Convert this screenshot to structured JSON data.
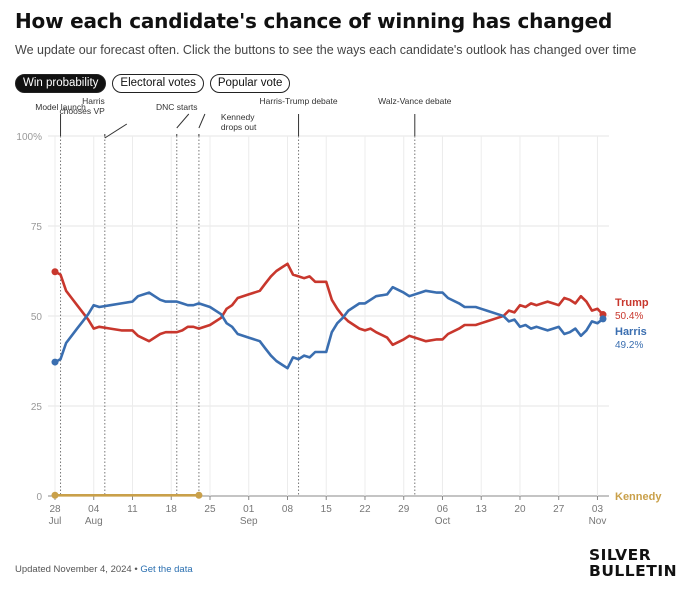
{
  "header": {
    "title": "How each candidate's chance of winning has changed",
    "subtitle": "We update our forecast often. Click the buttons to see the ways each candidate's outlook has changed over time"
  },
  "tabs": [
    {
      "label": "Win probability",
      "active": true
    },
    {
      "label": "Electoral votes",
      "active": false
    },
    {
      "label": "Popular vote",
      "active": false
    }
  ],
  "footer": {
    "updated": "Updated November 4, 2024",
    "separator": "•",
    "link": "Get the data"
  },
  "logo": {
    "line1": "SILVER",
    "line2": "BULLETIN"
  },
  "chart_data": {
    "type": "line",
    "title": "How each candidate's chance of winning has changed",
    "xlabel": "",
    "ylabel": "",
    "ylim": [
      0,
      100
    ],
    "yticks": [
      0,
      25,
      50,
      75,
      100
    ],
    "ytick_labels": [
      "0",
      "25",
      "50",
      "75",
      "100%"
    ],
    "xlim": [
      "2024-07-28",
      "2024-11-04"
    ],
    "xticks": [
      {
        "date": "2024-07-28",
        "day": "28",
        "month": "Jul"
      },
      {
        "date": "2024-08-04",
        "day": "04",
        "month": "Aug"
      },
      {
        "date": "2024-08-11",
        "day": "11",
        "month": ""
      },
      {
        "date": "2024-08-18",
        "day": "18",
        "month": ""
      },
      {
        "date": "2024-08-25",
        "day": "25",
        "month": ""
      },
      {
        "date": "2024-09-01",
        "day": "01",
        "month": "Sep"
      },
      {
        "date": "2024-09-08",
        "day": "08",
        "month": ""
      },
      {
        "date": "2024-09-15",
        "day": "15",
        "month": ""
      },
      {
        "date": "2024-09-22",
        "day": "22",
        "month": ""
      },
      {
        "date": "2024-09-29",
        "day": "29",
        "month": ""
      },
      {
        "date": "2024-10-06",
        "day": "06",
        "month": "Oct"
      },
      {
        "date": "2024-10-13",
        "day": "13",
        "month": ""
      },
      {
        "date": "2024-10-20",
        "day": "20",
        "month": ""
      },
      {
        "date": "2024-10-27",
        "day": "27",
        "month": ""
      },
      {
        "date": "2024-11-03",
        "day": "03",
        "month": "Nov"
      }
    ],
    "grid": true,
    "legend_position": "right",
    "events": [
      {
        "date": "2024-07-29",
        "label": [
          "Model launch"
        ]
      },
      {
        "date": "2024-08-06",
        "label": [
          "Harris",
          "chooses VP"
        ]
      },
      {
        "date": "2024-08-19",
        "label": [
          "DNC starts"
        ]
      },
      {
        "date": "2024-08-23",
        "label": [
          "Kennedy",
          "drops out"
        ]
      },
      {
        "date": "2024-09-10",
        "label": [
          "Harris-Trump debate"
        ]
      },
      {
        "date": "2024-10-01",
        "label": [
          "Walz-Vance debate"
        ]
      }
    ],
    "series": [
      {
        "name": "Trump",
        "color": "#c8372d",
        "end_label": "50.4%",
        "points": [
          [
            "2024-07-28",
            62.3
          ],
          [
            "2024-07-29",
            61.5
          ],
          [
            "2024-07-30",
            57.0
          ],
          [
            "2024-07-31",
            55.0
          ],
          [
            "2024-08-01",
            53.0
          ],
          [
            "2024-08-02",
            51.0
          ],
          [
            "2024-08-03",
            49.0
          ],
          [
            "2024-08-04",
            46.5
          ],
          [
            "2024-08-05",
            47.0
          ],
          [
            "2024-08-07",
            46.5
          ],
          [
            "2024-08-09",
            46.0
          ],
          [
            "2024-08-11",
            46.0
          ],
          [
            "2024-08-12",
            44.5
          ],
          [
            "2024-08-14",
            43.0
          ],
          [
            "2024-08-15",
            44.0
          ],
          [
            "2024-08-16",
            45.0
          ],
          [
            "2024-08-17",
            45.5
          ],
          [
            "2024-08-19",
            45.5
          ],
          [
            "2024-08-20",
            46.0
          ],
          [
            "2024-08-21",
            47.0
          ],
          [
            "2024-08-22",
            47.0
          ],
          [
            "2024-08-23",
            46.5
          ],
          [
            "2024-08-25",
            47.5
          ],
          [
            "2024-08-27",
            49.5
          ],
          [
            "2024-08-28",
            52.0
          ],
          [
            "2024-08-29",
            53.0
          ],
          [
            "2024-08-30",
            55.0
          ],
          [
            "2024-09-01",
            56.0
          ],
          [
            "2024-09-03",
            57.0
          ],
          [
            "2024-09-04",
            59.0
          ],
          [
            "2024-09-05",
            61.0
          ],
          [
            "2024-09-06",
            62.5
          ],
          [
            "2024-09-07",
            63.5
          ],
          [
            "2024-09-08",
            64.5
          ],
          [
            "2024-09-09",
            61.5
          ],
          [
            "2024-09-10",
            61.0
          ],
          [
            "2024-09-11",
            60.5
          ],
          [
            "2024-09-12",
            61.0
          ],
          [
            "2024-09-13",
            59.5
          ],
          [
            "2024-09-15",
            59.5
          ],
          [
            "2024-09-16",
            54.5
          ],
          [
            "2024-09-17",
            52.0
          ],
          [
            "2024-09-18",
            50.0
          ],
          [
            "2024-09-19",
            48.5
          ],
          [
            "2024-09-20",
            47.5
          ],
          [
            "2024-09-21",
            46.5
          ],
          [
            "2024-09-22",
            46.0
          ],
          [
            "2024-09-23",
            46.5
          ],
          [
            "2024-09-24",
            45.5
          ],
          [
            "2024-09-26",
            44.0
          ],
          [
            "2024-09-27",
            42.0
          ],
          [
            "2024-09-29",
            43.5
          ],
          [
            "2024-09-30",
            44.5
          ],
          [
            "2024-10-02",
            43.5
          ],
          [
            "2024-10-03",
            43.0
          ],
          [
            "2024-10-05",
            43.5
          ],
          [
            "2024-10-06",
            43.5
          ],
          [
            "2024-10-07",
            45.0
          ],
          [
            "2024-10-09",
            46.5
          ],
          [
            "2024-10-10",
            47.5
          ],
          [
            "2024-10-12",
            47.5
          ],
          [
            "2024-10-13",
            48.0
          ],
          [
            "2024-10-14",
            48.5
          ],
          [
            "2024-10-16",
            49.5
          ],
          [
            "2024-10-17",
            50.0
          ],
          [
            "2024-10-18",
            51.5
          ],
          [
            "2024-10-19",
            51.0
          ],
          [
            "2024-10-20",
            53.0
          ],
          [
            "2024-10-21",
            52.5
          ],
          [
            "2024-10-22",
            53.5
          ],
          [
            "2024-10-23",
            53.0
          ],
          [
            "2024-10-24",
            53.5
          ],
          [
            "2024-10-25",
            54.0
          ],
          [
            "2024-10-26",
            53.5
          ],
          [
            "2024-10-27",
            53.0
          ],
          [
            "2024-10-28",
            55.0
          ],
          [
            "2024-10-29",
            54.5
          ],
          [
            "2024-10-30",
            53.5
          ],
          [
            "2024-10-31",
            55.5
          ],
          [
            "2024-11-01",
            54.0
          ],
          [
            "2024-11-02",
            51.5
          ],
          [
            "2024-11-03",
            52.0
          ],
          [
            "2024-11-04",
            50.4
          ]
        ]
      },
      {
        "name": "Harris",
        "color": "#3a6eb0",
        "end_label": "49.2%",
        "points": [
          [
            "2024-07-28",
            37.2
          ],
          [
            "2024-07-29",
            38.0
          ],
          [
            "2024-07-30",
            42.5
          ],
          [
            "2024-07-31",
            44.5
          ],
          [
            "2024-08-01",
            46.5
          ],
          [
            "2024-08-02",
            48.5
          ],
          [
            "2024-08-03",
            50.5
          ],
          [
            "2024-08-04",
            53.0
          ],
          [
            "2024-08-05",
            52.5
          ],
          [
            "2024-08-07",
            53.0
          ],
          [
            "2024-08-09",
            53.5
          ],
          [
            "2024-08-11",
            54.0
          ],
          [
            "2024-08-12",
            55.5
          ],
          [
            "2024-08-14",
            56.5
          ],
          [
            "2024-08-15",
            55.5
          ],
          [
            "2024-08-16",
            54.5
          ],
          [
            "2024-08-17",
            54.0
          ],
          [
            "2024-08-19",
            54.0
          ],
          [
            "2024-08-20",
            53.5
          ],
          [
            "2024-08-21",
            53.0
          ],
          [
            "2024-08-22",
            53.0
          ],
          [
            "2024-08-23",
            53.5
          ],
          [
            "2024-08-25",
            52.5
          ],
          [
            "2024-08-27",
            50.5
          ],
          [
            "2024-08-28",
            48.0
          ],
          [
            "2024-08-29",
            47.0
          ],
          [
            "2024-08-30",
            45.0
          ],
          [
            "2024-09-01",
            44.0
          ],
          [
            "2024-09-03",
            43.0
          ],
          [
            "2024-09-04",
            41.0
          ],
          [
            "2024-09-05",
            39.0
          ],
          [
            "2024-09-06",
            37.5
          ],
          [
            "2024-09-07",
            36.5
          ],
          [
            "2024-09-08",
            35.5
          ],
          [
            "2024-09-09",
            38.5
          ],
          [
            "2024-09-10",
            38.0
          ],
          [
            "2024-09-11",
            39.0
          ],
          [
            "2024-09-12",
            38.5
          ],
          [
            "2024-09-13",
            40.0
          ],
          [
            "2024-09-15",
            40.0
          ],
          [
            "2024-09-16",
            45.5
          ],
          [
            "2024-09-17",
            48.0
          ],
          [
            "2024-09-18",
            49.5
          ],
          [
            "2024-09-19",
            51.5
          ],
          [
            "2024-09-20",
            52.5
          ],
          [
            "2024-09-21",
            53.5
          ],
          [
            "2024-09-22",
            53.5
          ],
          [
            "2024-09-23",
            54.5
          ],
          [
            "2024-09-24",
            55.5
          ],
          [
            "2024-09-26",
            56.0
          ],
          [
            "2024-09-27",
            58.0
          ],
          [
            "2024-09-29",
            56.5
          ],
          [
            "2024-09-30",
            55.5
          ],
          [
            "2024-10-02",
            56.5
          ],
          [
            "2024-10-03",
            57.0
          ],
          [
            "2024-10-05",
            56.5
          ],
          [
            "2024-10-06",
            56.5
          ],
          [
            "2024-10-07",
            55.0
          ],
          [
            "2024-10-09",
            53.5
          ],
          [
            "2024-10-10",
            52.5
          ],
          [
            "2024-10-12",
            52.5
          ],
          [
            "2024-10-13",
            52.0
          ],
          [
            "2024-10-14",
            51.5
          ],
          [
            "2024-10-16",
            50.5
          ],
          [
            "2024-10-17",
            50.0
          ],
          [
            "2024-10-18",
            48.5
          ],
          [
            "2024-10-19",
            49.0
          ],
          [
            "2024-10-20",
            47.0
          ],
          [
            "2024-10-21",
            47.5
          ],
          [
            "2024-10-22",
            46.5
          ],
          [
            "2024-10-23",
            47.0
          ],
          [
            "2024-10-24",
            46.5
          ],
          [
            "2024-10-25",
            46.0
          ],
          [
            "2024-10-26",
            46.5
          ],
          [
            "2024-10-27",
            47.0
          ],
          [
            "2024-10-28",
            45.0
          ],
          [
            "2024-10-29",
            45.5
          ],
          [
            "2024-10-30",
            46.5
          ],
          [
            "2024-10-31",
            44.5
          ],
          [
            "2024-11-01",
            46.0
          ],
          [
            "2024-11-02",
            48.5
          ],
          [
            "2024-11-03",
            48.0
          ],
          [
            "2024-11-04",
            49.2
          ]
        ]
      },
      {
        "name": "Kennedy",
        "color": "#c9a04a",
        "end_label": "",
        "points": [
          [
            "2024-07-28",
            0.2
          ],
          [
            "2024-08-23",
            0.2
          ]
        ]
      }
    ]
  }
}
